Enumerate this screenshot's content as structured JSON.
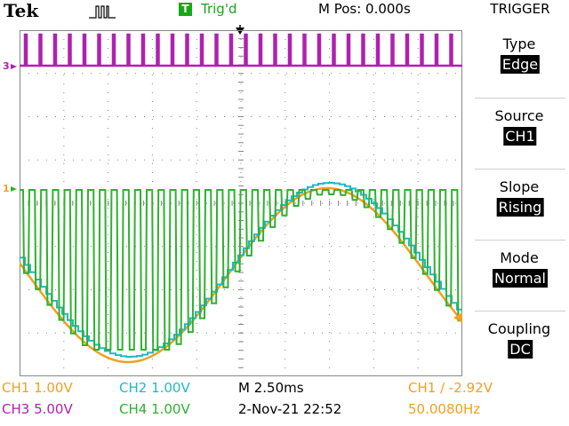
{
  "header": {
    "brand": "Tek",
    "acquisition_icon": "pulse-icon",
    "trigger_badge": "T",
    "trigger_status": "Trig'd",
    "mpos": "M Pos: 0.000s"
  },
  "menu": {
    "title": "TRIGGER",
    "items": [
      {
        "label": "Type",
        "value": "Edge"
      },
      {
        "label": "Source",
        "value": "CH1"
      },
      {
        "label": "Slope",
        "value": "Rising"
      },
      {
        "label": "Mode",
        "value": "Normal"
      },
      {
        "label": "Coupling",
        "value": "DC"
      }
    ]
  },
  "status": {
    "ch1": "CH1  1.00V",
    "ch2": "CH2  1.00V",
    "ch3": "CH3  5.00V",
    "ch4": "CH4  1.00V",
    "timebase": "M 2.50ms",
    "datetime": "2-Nov-21 22:52",
    "trigger_level": "CH1 ∕ -2.92V",
    "frequency": "50.0080Hz"
  },
  "channel_markers": {
    "ch3": "3",
    "ch1": "1"
  },
  "colors": {
    "ch1": "#f0a020",
    "ch2": "#20b8c8",
    "ch3": "#b020b0",
    "ch4": "#30b030",
    "grid": "#888888",
    "trigger_green": "#1aa61a"
  }
}
